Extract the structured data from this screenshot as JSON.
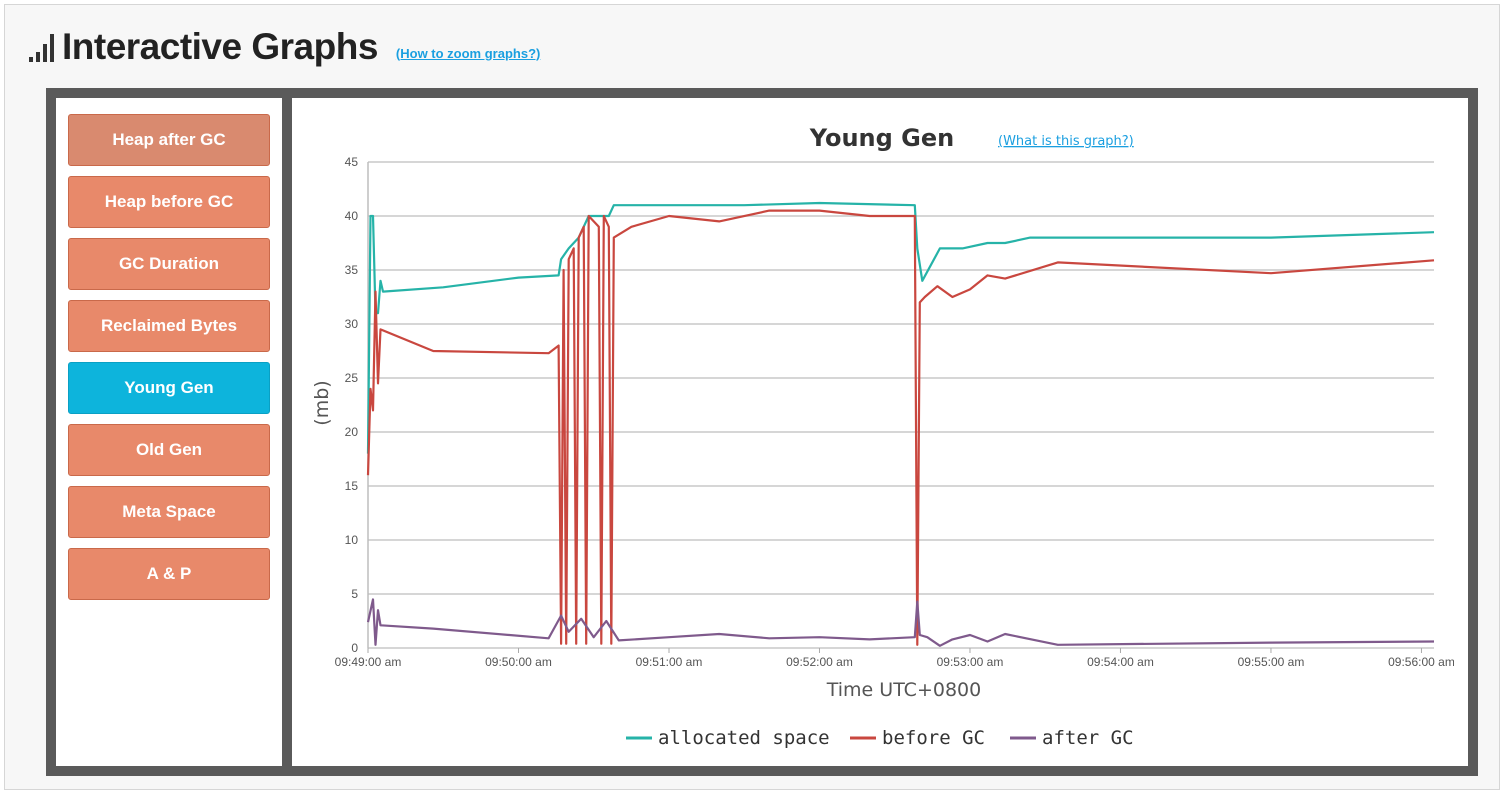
{
  "header": {
    "title": "Interactive Graphs",
    "help_link": "(How to zoom graphs?)"
  },
  "sidebar": {
    "items": [
      {
        "label": "Heap after GC",
        "state": "muted"
      },
      {
        "label": "Heap before GC",
        "state": "normal"
      },
      {
        "label": "GC Duration",
        "state": "normal"
      },
      {
        "label": "Reclaimed Bytes",
        "state": "normal"
      },
      {
        "label": "Young Gen",
        "state": "active"
      },
      {
        "label": "Old Gen",
        "state": "normal"
      },
      {
        "label": "Meta Space",
        "state": "normal"
      },
      {
        "label": "A & P",
        "state": "normal"
      }
    ]
  },
  "colors": {
    "accent": "#0db4dc",
    "button": "#e8896a",
    "allocated": "#26b3a8",
    "before": "#c9473f",
    "after": "#7f5a8c"
  },
  "chart_data": {
    "type": "line",
    "title": "Young Gen",
    "help_link": "(What is this graph?)",
    "xlabel": "Time UTC+0800",
    "ylabel": "(mb)",
    "ylim": [
      0,
      45
    ],
    "yticks": [
      0,
      5,
      10,
      15,
      20,
      25,
      30,
      35,
      40,
      45
    ],
    "xlim": [
      "09:49:00",
      "09:56:05"
    ],
    "xticks": [
      "09:49:00 am",
      "09:50:00 am",
      "09:51:00 am",
      "09:52:00 am",
      "09:53:00 am",
      "09:54:00 am",
      "09:55:00 am",
      "09:56:00 am"
    ],
    "grid": true,
    "legend_position": "bottom",
    "series": [
      {
        "name": "allocated space",
        "color": "#26b3a8",
        "points": [
          [
            "09:49:00",
            18
          ],
          [
            "09:49:01",
            40
          ],
          [
            "09:49:02",
            40
          ],
          [
            "09:49:03",
            31
          ],
          [
            "09:49:04",
            31
          ],
          [
            "09:49:05",
            34
          ],
          [
            "09:49:06",
            33
          ],
          [
            "09:49:30",
            33.4
          ],
          [
            "09:50:00",
            34.3
          ],
          [
            "09:50:16",
            34.5
          ],
          [
            "09:50:17",
            36
          ],
          [
            "09:50:20",
            37
          ],
          [
            "09:50:24",
            38
          ],
          [
            "09:50:28",
            40
          ],
          [
            "09:50:36",
            40
          ],
          [
            "09:50:38",
            41
          ],
          [
            "09:50:50",
            41
          ],
          [
            "09:51:30",
            41
          ],
          [
            "09:52:00",
            41.2
          ],
          [
            "09:52:38",
            41
          ],
          [
            "09:52:39",
            37
          ],
          [
            "09:52:41",
            34
          ],
          [
            "09:52:48",
            37
          ],
          [
            "09:52:57",
            37
          ],
          [
            "09:53:07",
            37.5
          ],
          [
            "09:53:14",
            37.5
          ],
          [
            "09:53:24",
            38
          ],
          [
            "09:54:00",
            38
          ],
          [
            "09:55:00",
            38
          ],
          [
            "09:56:05",
            38.5
          ]
        ]
      },
      {
        "name": "before GC",
        "color": "#c9473f",
        "points": [
          [
            "09:49:00",
            16
          ],
          [
            "09:49:01",
            24
          ],
          [
            "09:49:02",
            22
          ],
          [
            "09:49:03",
            33
          ],
          [
            "09:49:04",
            24.5
          ],
          [
            "09:49:05",
            29.5
          ],
          [
            "09:49:26",
            27.5
          ],
          [
            "09:50:12",
            27.3
          ],
          [
            "09:50:16",
            28
          ],
          [
            "09:50:17",
            0.4
          ],
          [
            "09:50:18",
            35
          ],
          [
            "09:50:19",
            0.4
          ],
          [
            "09:50:20",
            36
          ],
          [
            "09:50:22",
            37
          ],
          [
            "09:50:23",
            0.4
          ],
          [
            "09:50:24",
            38
          ],
          [
            "09:50:26",
            39
          ],
          [
            "09:50:27",
            0.4
          ],
          [
            "09:50:28",
            40
          ],
          [
            "09:50:32",
            39
          ],
          [
            "09:50:33",
            0.4
          ],
          [
            "09:50:34",
            40
          ],
          [
            "09:50:36",
            39
          ],
          [
            "09:50:37",
            0.4
          ],
          [
            "09:50:38",
            38
          ],
          [
            "09:50:45",
            39
          ],
          [
            "09:51:00",
            40
          ],
          [
            "09:51:20",
            39.5
          ],
          [
            "09:51:40",
            40.5
          ],
          [
            "09:52:00",
            40.5
          ],
          [
            "09:52:20",
            40
          ],
          [
            "09:52:38",
            40
          ],
          [
            "09:52:39",
            0.3
          ],
          [
            "09:52:40",
            32
          ],
          [
            "09:52:42",
            32.5
          ],
          [
            "09:52:47",
            33.5
          ],
          [
            "09:52:53",
            32.5
          ],
          [
            "09:53:00",
            33.2
          ],
          [
            "09:53:07",
            34.5
          ],
          [
            "09:53:14",
            34.2
          ],
          [
            "09:53:35",
            35.7
          ],
          [
            "09:55:00",
            34.7
          ],
          [
            "09:56:05",
            35.9
          ]
        ]
      },
      {
        "name": "after GC",
        "color": "#7f5a8c",
        "points": [
          [
            "09:49:00",
            2.4
          ],
          [
            "09:49:02",
            4.5
          ],
          [
            "09:49:03",
            0.3
          ],
          [
            "09:49:04",
            3.5
          ],
          [
            "09:49:05",
            2.1
          ],
          [
            "09:49:26",
            1.8
          ],
          [
            "09:50:12",
            0.9
          ],
          [
            "09:50:17",
            3
          ],
          [
            "09:50:20",
            1.5
          ],
          [
            "09:50:25",
            2.7
          ],
          [
            "09:50:30",
            1
          ],
          [
            "09:50:35",
            2.5
          ],
          [
            "09:50:40",
            0.7
          ],
          [
            "09:51:00",
            1
          ],
          [
            "09:51:20",
            1.3
          ],
          [
            "09:51:40",
            0.9
          ],
          [
            "09:52:00",
            1
          ],
          [
            "09:52:20",
            0.8
          ],
          [
            "09:52:38",
            1
          ],
          [
            "09:52:39",
            4.3
          ],
          [
            "09:52:40",
            1.2
          ],
          [
            "09:52:43",
            1
          ],
          [
            "09:52:48",
            0.2
          ],
          [
            "09:52:53",
            0.8
          ],
          [
            "09:53:00",
            1.2
          ],
          [
            "09:53:07",
            0.6
          ],
          [
            "09:53:14",
            1.3
          ],
          [
            "09:53:35",
            0.3
          ],
          [
            "09:55:00",
            0.5
          ],
          [
            "09:56:05",
            0.6
          ]
        ]
      }
    ]
  }
}
